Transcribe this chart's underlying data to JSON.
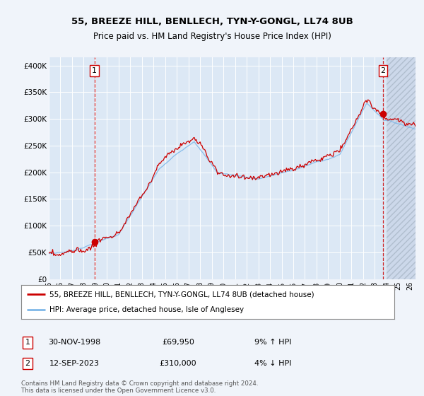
{
  "title1": "55, BREEZE HILL, BENLLECH, TYN-Y-GONGL, LL74 8UB",
  "title2": "Price paid vs. HM Land Registry's House Price Index (HPI)",
  "ylabel_ticks": [
    "£0",
    "£50K",
    "£100K",
    "£150K",
    "£200K",
    "£250K",
    "£300K",
    "£350K",
    "£400K"
  ],
  "ytick_vals": [
    0,
    50000,
    100000,
    150000,
    200000,
    250000,
    300000,
    350000,
    400000
  ],
  "ylim": [
    0,
    415000
  ],
  "xlim_start": 1995.0,
  "xlim_end": 2026.5,
  "xtick_years": [
    1995,
    1996,
    1997,
    1998,
    1999,
    2000,
    2001,
    2002,
    2003,
    2004,
    2005,
    2006,
    2007,
    2008,
    2009,
    2010,
    2011,
    2012,
    2013,
    2014,
    2015,
    2016,
    2017,
    2018,
    2019,
    2020,
    2021,
    2022,
    2023,
    2024,
    2025,
    2026
  ],
  "bg_color": "#f0f4fa",
  "plot_area_color": "#dce8f5",
  "grid_color": "#ffffff",
  "hpi_line_color": "#7fb8e8",
  "price_line_color": "#cc0000",
  "sale1_x": 1998.92,
  "sale1_y": 69950,
  "sale2_x": 2023.71,
  "sale2_y": 310000,
  "sale1_date": "30-NOV-1998",
  "sale1_price": "£69,950",
  "sale1_hpi": "9% ↑ HPI",
  "sale2_date": "12-SEP-2023",
  "sale2_price": "£310,000",
  "sale2_hpi": "4% ↓ HPI",
  "legend_line1": "55, BREEZE HILL, BENLLECH, TYN-Y-GONGL, LL74 8UB (detached house)",
  "legend_line2": "HPI: Average price, detached house, Isle of Anglesey",
  "footnote": "Contains HM Land Registry data © Crown copyright and database right 2024.\nThis data is licensed under the Open Government Licence v3.0.",
  "hatch_start": 2024.0
}
